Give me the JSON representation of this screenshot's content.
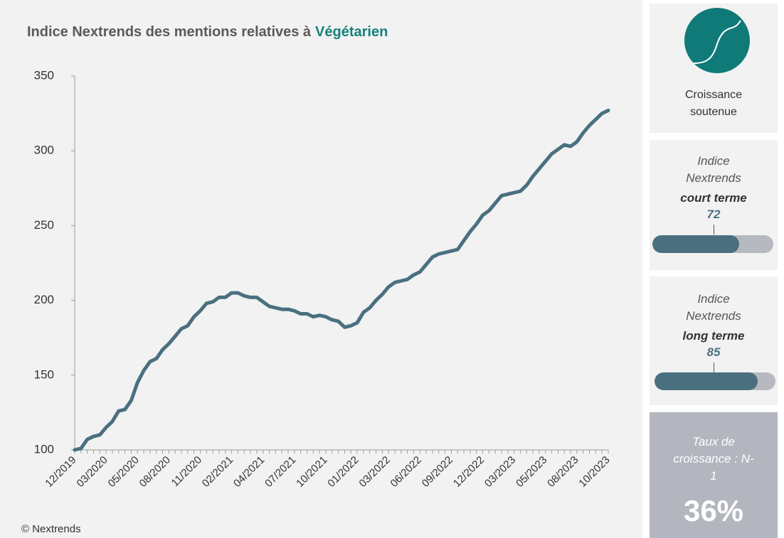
{
  "chart_data": {
    "type": "line",
    "title": "Indice Nextrends des mentions relatives à",
    "title_highlight": "Végétarien",
    "categories": [
      "12/2019",
      null,
      null,
      null,
      null,
      "03/2020",
      null,
      null,
      null,
      null,
      "05/2020",
      null,
      null,
      null,
      null,
      "08/2020",
      null,
      null,
      null,
      null,
      "11/2020",
      null,
      null,
      null,
      null,
      "02/2021",
      null,
      null,
      null,
      null,
      "04/2021",
      null,
      null,
      null,
      null,
      "07/2021",
      null,
      null,
      null,
      null,
      "10/2021",
      null,
      null,
      null,
      null,
      "01/2022",
      null,
      null,
      null,
      null,
      "03/2022",
      null,
      null,
      null,
      null,
      "06/2022",
      null,
      null,
      null,
      null,
      "09/2022",
      null,
      null,
      null,
      null,
      "12/2022",
      null,
      null,
      null,
      null,
      "03/2023",
      null,
      null,
      null,
      null,
      "05/2023",
      null,
      null,
      null,
      null,
      "08/2023",
      null,
      null,
      null,
      null,
      "10/2023"
    ],
    "values": [
      100,
      101,
      107,
      109,
      110,
      115,
      119,
      126,
      127,
      133,
      145,
      153,
      159,
      161,
      167,
      171,
      176,
      181,
      183,
      189,
      193,
      198,
      199,
      202,
      202,
      205,
      205,
      203,
      202,
      202,
      199,
      196,
      195,
      194,
      194,
      193,
      191,
      191,
      189,
      190,
      189,
      187,
      186,
      182,
      183,
      185,
      192,
      195,
      200,
      204,
      209,
      212,
      213,
      214,
      217,
      219,
      224,
      229,
      231,
      232,
      233,
      234,
      240,
      246,
      251,
      257,
      260,
      265,
      270,
      271,
      272,
      273,
      277,
      283,
      288,
      293,
      298,
      301,
      304,
      303,
      306,
      312,
      317,
      321,
      325,
      327
    ],
    "color": "#4a7080",
    "ylim": [
      100,
      350
    ],
    "yticks": [
      100,
      150,
      200,
      250,
      300,
      350
    ],
    "grid": false,
    "source": "© Nextrends"
  },
  "panels": {
    "trend": {
      "label": "Croissance soutenue"
    },
    "short_term": {
      "label": "Indice Nextrends",
      "term": "court terme",
      "value": 72,
      "range": [
        0,
        100
      ]
    },
    "long_term": {
      "label": "Indice Nextrends",
      "term": "long terme",
      "value": 85,
      "range": [
        0,
        100
      ]
    },
    "growth": {
      "label": "Taux de croissance : N-1",
      "value": 36,
      "value_label": "36%"
    }
  }
}
